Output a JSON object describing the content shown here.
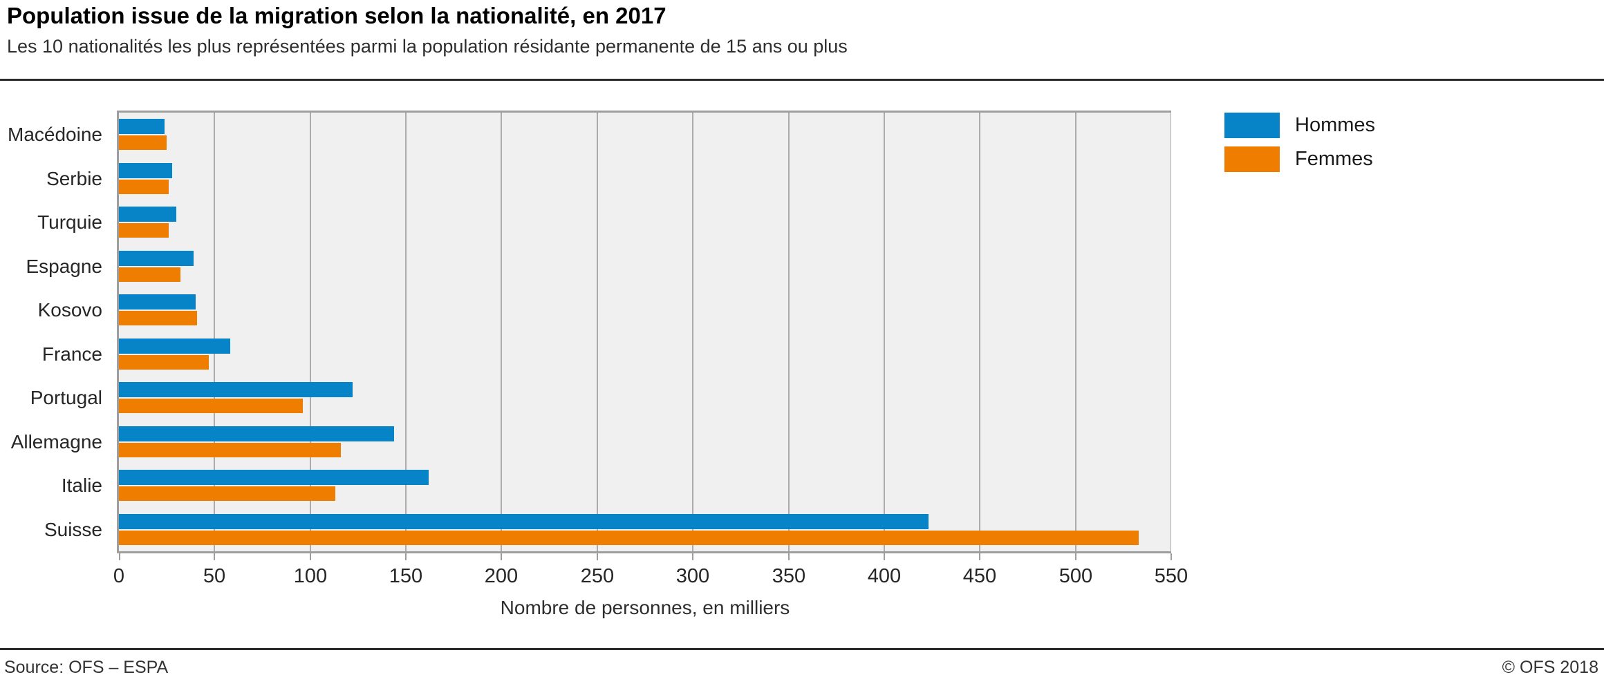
{
  "header": {
    "title": "Population issue de la migration selon la nationalité, en 2017",
    "subtitle": "Les 10 nationalités les plus représentées parmi la population résidante permanente de 15 ans ou plus"
  },
  "chart_data": {
    "type": "bar",
    "orientation": "horizontal",
    "categories": [
      "Macédoine",
      "Serbie",
      "Turquie",
      "Espagne",
      "Kosovo",
      "France",
      "Portugal",
      "Allemagne",
      "Italie",
      "Suisse"
    ],
    "series": [
      {
        "name": "Hommes",
        "color": "#0784c7",
        "values": [
          24,
          28,
          30,
          39,
          40,
          58,
          122,
          144,
          162,
          423
        ]
      },
      {
        "name": "Femmes",
        "color": "#ef7d00",
        "values": [
          25,
          26,
          26,
          32,
          41,
          47,
          96,
          116,
          113,
          533
        ]
      }
    ],
    "xlabel": "Nombre de personnes, en milliers",
    "xlim": [
      0,
      550
    ],
    "xticks": [
      0,
      50,
      100,
      150,
      200,
      250,
      300,
      350,
      400,
      450,
      500,
      550
    ],
    "grid": true,
    "legend_position": "top-right",
    "plot_background": "#f0f0f0",
    "gridline_color": "#ababab",
    "axis_color": "#9e9e9e"
  },
  "footer": {
    "source": "Source: OFS – ESPA",
    "copyright": "© OFS 2018"
  }
}
